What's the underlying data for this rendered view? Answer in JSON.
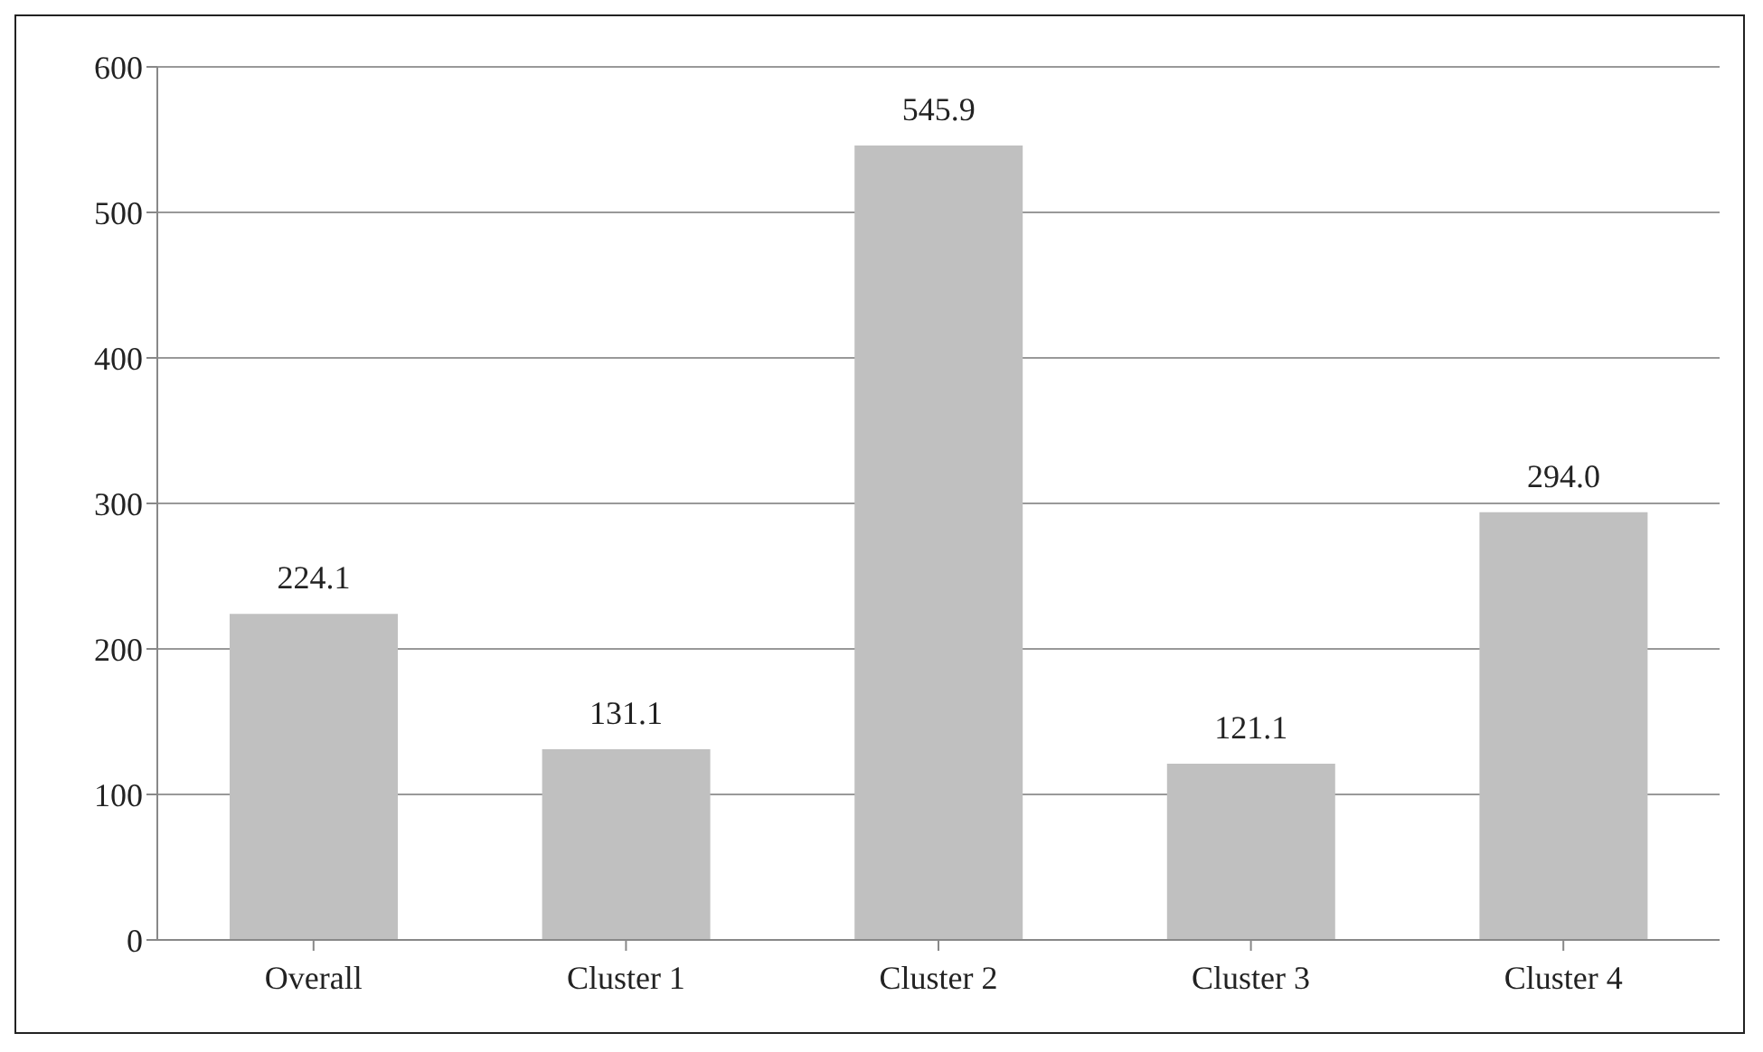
{
  "chart_data": {
    "type": "bar",
    "categories": [
      "Overall",
      "Cluster 1",
      "Cluster 2",
      "Cluster 3",
      "Cluster 4"
    ],
    "values": [
      224.1,
      131.1,
      545.9,
      121.1,
      294.0
    ],
    "value_labels": [
      "224.1",
      "131.1",
      "545.9",
      "121.1",
      "294.0"
    ],
    "color": "#c0c0c0",
    "ylim": [
      0,
      600
    ],
    "yticks": [
      0,
      100,
      200,
      300,
      400,
      500,
      600
    ],
    "grid": "y"
  }
}
